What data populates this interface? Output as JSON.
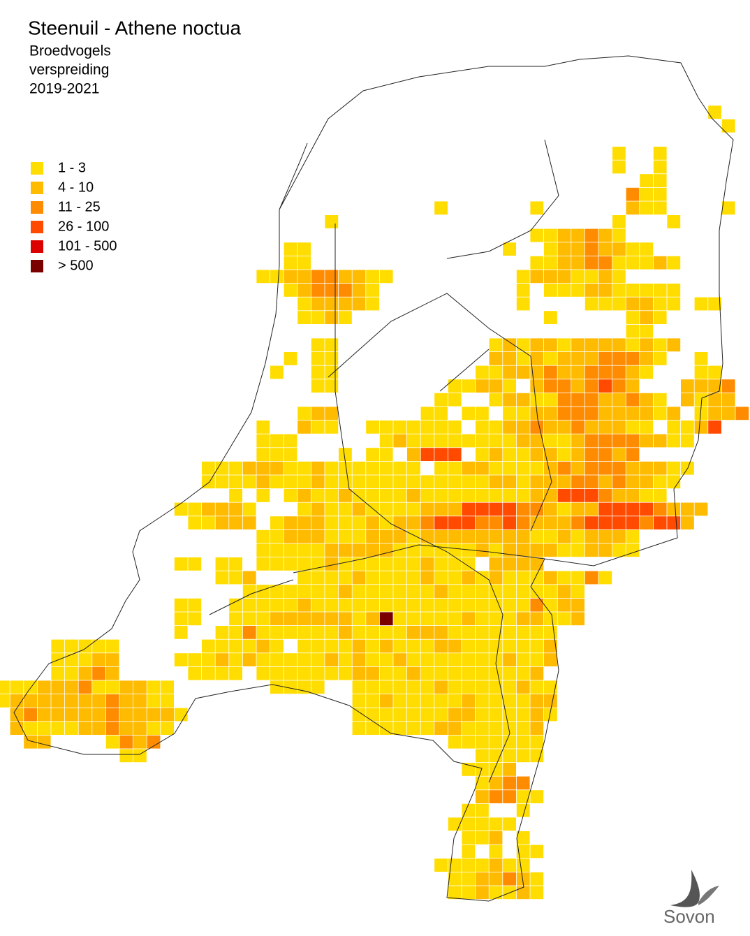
{
  "header": {
    "title": "Steenuil - Athene noctua",
    "subtitle": [
      "Broedvogels",
      "verspreiding",
      "2019-2021"
    ]
  },
  "legend": [
    {
      "label": "1 - 3",
      "color": "#ffdd00"
    },
    {
      "label": "4 - 10",
      "color": "#ffbb00"
    },
    {
      "label": "11 - 25",
      "color": "#ff8c00"
    },
    {
      "label": "26 - 100",
      "color": "#ff4a00"
    },
    {
      "label": "101 - 500",
      "color": "#dd0000"
    },
    {
      "label": "> 500",
      "color": "#7a0000"
    }
  ],
  "map": {
    "cells": [
      "....................................................0",
      ".....................................................0",
      "",
      ".............................................0..0",
      ".............................................0..0",
      "...............................................00",
      "..............................................200",
      "................................0......0......100....0",
      "........................0....................0...0",
      ".......................................0011210",
      ".....................00..............0..01121100",
      ".....................00................00112200010",
      "...................0011221100.........01110010",
      ".....................0122210..........0.0001100000",
      "......................011110..........0....0001100.00",
      "......................0010..............0.....010",
      "..............................................00",
      ".......................00...........01011011110101",
      ".....................0.00...........1101011122210..0",
      "....................0..00..........0011121122210...00",
      ".......................00........00110.12212321...1112",
      "................................00..0110022211210.1011",
      "......................011......00.00.0011222111101.0112",
      "...................0..100..0000000.0011211211100.0013",
      "...................000......01000000001100122221100",
      "...................000...0.00.1333.010011012212",
      "...............0001110010000000.0011000012122211100",
      "...............00001000100000000000011011122121100",
      ".................0.0.0100100001000000001133321100",
      ".............001110...010010000111333322101133332111",
      "..............00111.0111000101123332232111233332331",
      "...................0011100011101111111100101110",
      "...................0000011111000000101111001100",
      ".............00.00.0000010000001000.1111",
      "................001...00001000010010100010020",
      "..................0000000100000010000000010",
      ".............00..00000100000000000000002011",
      ".............00..00011111101500000100011001",
      ".............0..0020000001000011100000000",
      "....00000......000010.0000101000110000001",
      "....00011....0001010000010100100000001001",
      "....00121.....0000.000000011001000000001",
      "0001112001100.......0000..000000100000100",
      "0111111121100.............001000001000011",
      ".1211111211110............000000011000010",
      ".100001121100.............00000011000001",
      "..11....0212.....................0000000",
      ".........00........................00000",
      "..................................0001",
      "...................................0122",
      "...................................12200",
      "..................................00..0",
      ".................................00000",
      "..................................001.0",
      "..................................0.0.00",
      "................................0000100",
      ".................................0011210",
      ".................................0010010"
    ],
    "logo": "Sovon"
  }
}
